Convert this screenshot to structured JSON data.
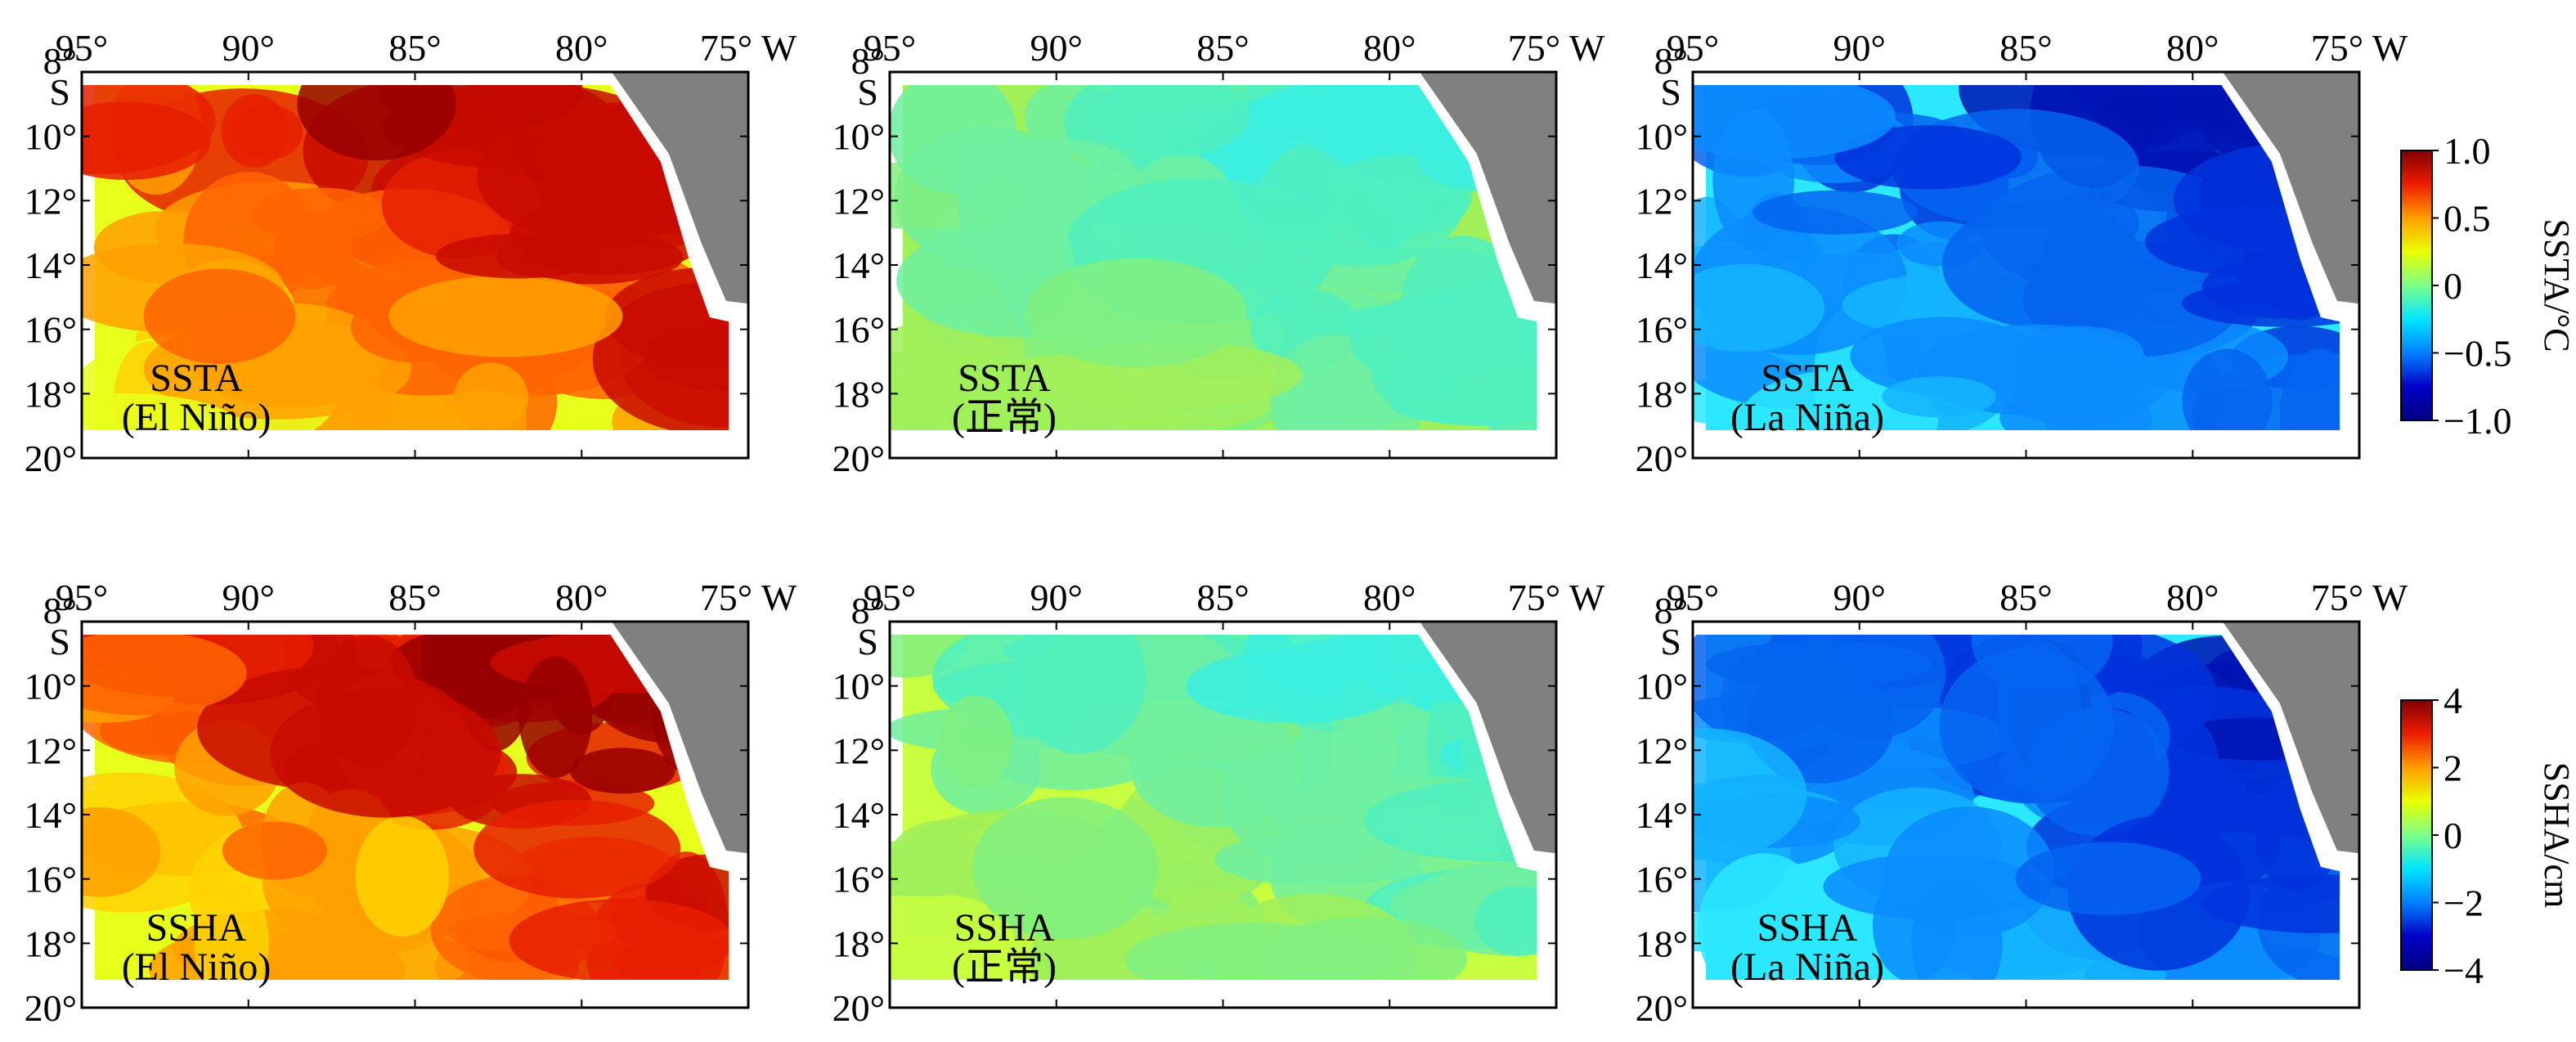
{
  "figure": {
    "lon_ticks": [
      "95°",
      "90°",
      "85°",
      "80°",
      "75° W"
    ],
    "lat_ticks": [
      "8°\nS",
      "10°",
      "12°",
      "14°",
      "16°",
      "18°",
      "20°"
    ],
    "rows": [
      {
        "variable": "SSTA",
        "colorbar": {
          "title": "SSTA/°C",
          "ticks": [
            "1.0",
            "0.5",
            "0",
            "−0.5",
            "−1.0"
          ],
          "range": [
            -1.0,
            1.0
          ],
          "colors": [
            "#7f0000",
            "#ee1c00",
            "#ff9e00",
            "#eaff00",
            "#7dff8a",
            "#00e5ff",
            "#0080ff",
            "#0000c8",
            "#00007f"
          ]
        },
        "panels": [
          {
            "label_line1": "SSTA",
            "label_line2": "(El Niño)",
            "mean_value": 0.5,
            "field_colors": [
              "#e8ff1c",
              "#ffd200",
              "#ffa000",
              "#ff6400",
              "#e61e00",
              "#c80a00",
              "#960000"
            ]
          },
          {
            "label_line1": "SSTA",
            "label_line2": "(正常)",
            "mean_value": 0.0,
            "field_colors": [
              "#a0f05a",
              "#80f080",
              "#6ef0a0",
              "#50f0c0",
              "#3cf0e0"
            ]
          },
          {
            "label_line1": "SSTA",
            "label_line2": "(La Niña)",
            "mean_value": -0.6,
            "field_colors": [
              "#2ce8ff",
              "#14b4ff",
              "#0a8cff",
              "#0564f0",
              "#0032dc",
              "#0014b4"
            ]
          }
        ]
      },
      {
        "variable": "SSHA",
        "colorbar": {
          "title": "SSHA/cm",
          "ticks": [
            "4",
            "2",
            "0",
            "−2",
            "−4"
          ],
          "range": [
            -4,
            4
          ],
          "colors": [
            "#7f0000",
            "#ee1c00",
            "#ff9e00",
            "#eaff00",
            "#7dff8a",
            "#00e5ff",
            "#0080ff",
            "#0000c8",
            "#00007f"
          ]
        },
        "panels": [
          {
            "label_line1": "SSHA",
            "label_line2": "(El Niño)",
            "mean_value": 2.0,
            "field_colors": [
              "#e8ff1c",
              "#ffd200",
              "#ffa000",
              "#ff6400",
              "#e61e00",
              "#c80a00",
              "#960000"
            ]
          },
          {
            "label_line1": "SSHA",
            "label_line2": "(正常)",
            "mean_value": 0.0,
            "field_colors": [
              "#c8ff40",
              "#a0f05a",
              "#80f080",
              "#6ef0a0",
              "#50f0c0",
              "#3cf0e0"
            ]
          },
          {
            "label_line1": "SSHA",
            "label_line2": "(La Niña)",
            "mean_value": -2.5,
            "field_colors": [
              "#2ce8ff",
              "#14b4ff",
              "#0a8cff",
              "#0564f0",
              "#0032dc",
              "#0014b4"
            ]
          }
        ]
      }
    ],
    "land_color": "#808080"
  }
}
